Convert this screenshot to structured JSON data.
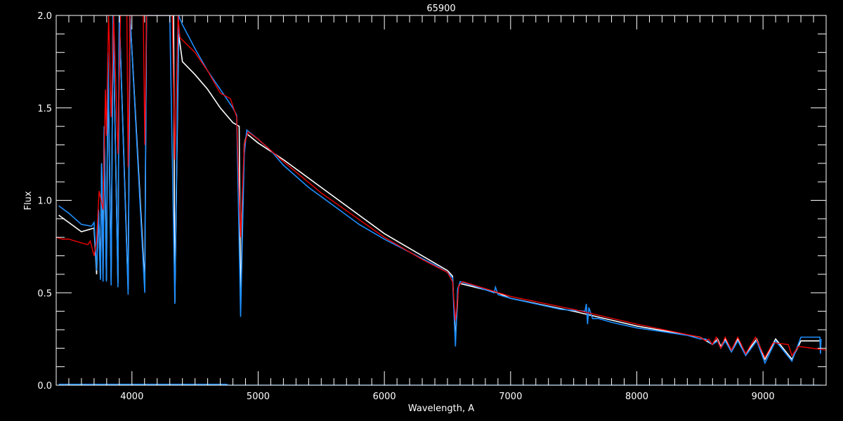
{
  "chart_data": {
    "type": "line",
    "title": "65900",
    "xlabel": "Wavelength, A",
    "ylabel": "Flux",
    "xlim": [
      3400,
      9500
    ],
    "ylim": [
      0.0,
      2.0
    ],
    "x_ticks": [
      4000,
      5000,
      6000,
      7000,
      8000,
      9000
    ],
    "y_ticks": [
      "0.0",
      "0.5",
      "1.0",
      "1.5",
      "2.0"
    ],
    "x_minor_step": 100,
    "y_minor_step": 0.1,
    "grid": false,
    "background": "#000000",
    "axis_color": "#ffffff",
    "series": [
      {
        "color": "#ffffff",
        "points": [
          [
            3420,
            0.92
          ],
          [
            3500,
            0.88
          ],
          [
            3600,
            0.83
          ],
          [
            3700,
            0.85
          ],
          [
            3720,
            0.6
          ],
          [
            3735,
            0.95
          ],
          [
            3750,
            0.58
          ],
          [
            3760,
            1.2
          ],
          [
            3771,
            0.6
          ],
          [
            3780,
            1.4
          ],
          [
            3798,
            0.57
          ],
          [
            3810,
            1.75
          ],
          [
            3835,
            0.57
          ],
          [
            3850,
            2.0
          ],
          [
            3889,
            0.55
          ],
          [
            3900,
            2.0
          ],
          [
            3970,
            0.52
          ],
          [
            3985,
            2.0
          ],
          [
            4102,
            0.55
          ],
          [
            4115,
            2.0
          ],
          [
            4330,
            2.0
          ],
          [
            4340,
            0.45
          ],
          [
            4370,
            1.9
          ],
          [
            4400,
            1.75
          ],
          [
            4500,
            1.68
          ],
          [
            4600,
            1.6
          ],
          [
            4700,
            1.5
          ],
          [
            4800,
            1.42
          ],
          [
            4850,
            1.4
          ],
          [
            4861,
            0.45
          ],
          [
            4890,
            1.3
          ],
          [
            4910,
            1.36
          ],
          [
            5000,
            1.31
          ],
          [
            5200,
            1.22
          ],
          [
            5500,
            1.07
          ],
          [
            5800,
            0.92
          ],
          [
            6000,
            0.82
          ],
          [
            6300,
            0.7
          ],
          [
            6500,
            0.62
          ],
          [
            6540,
            0.59
          ],
          [
            6563,
            0.25
          ],
          [
            6585,
            0.53
          ],
          [
            6600,
            0.55
          ],
          [
            6900,
            0.5
          ],
          [
            7000,
            0.47
          ],
          [
            7500,
            0.4
          ],
          [
            8000,
            0.32
          ],
          [
            8500,
            0.26
          ],
          [
            8600,
            0.22
          ],
          [
            8640,
            0.25
          ],
          [
            8665,
            0.21
          ],
          [
            8700,
            0.25
          ],
          [
            8750,
            0.19
          ],
          [
            8800,
            0.25
          ],
          [
            8863,
            0.17
          ],
          [
            8950,
            0.25
          ],
          [
            9015,
            0.14
          ],
          [
            9100,
            0.25
          ],
          [
            9229,
            0.14
          ],
          [
            9300,
            0.24
          ],
          [
            9450,
            0.24
          ]
        ]
      },
      {
        "color": "#1e8fff",
        "points": [
          [
            3420,
            0.97
          ],
          [
            3500,
            0.93
          ],
          [
            3600,
            0.87
          ],
          [
            3680,
            0.86
          ],
          [
            3700,
            0.88
          ],
          [
            3720,
            0.62
          ],
          [
            3735,
            0.95
          ],
          [
            3750,
            0.57
          ],
          [
            3760,
            1.2
          ],
          [
            3771,
            0.56
          ],
          [
            3780,
            1.4
          ],
          [
            3798,
            0.56
          ],
          [
            3810,
            1.8
          ],
          [
            3835,
            0.54
          ],
          [
            3850,
            2.0
          ],
          [
            3889,
            0.53
          ],
          [
            3900,
            2.0
          ],
          [
            3970,
            0.49
          ],
          [
            3985,
            2.0
          ],
          [
            4102,
            0.5
          ],
          [
            4115,
            2.0
          ],
          [
            4300,
            2.0
          ],
          [
            4340,
            0.44
          ],
          [
            4370,
            2.0
          ],
          [
            4400,
            1.95
          ],
          [
            4500,
            1.82
          ],
          [
            4600,
            1.7
          ],
          [
            4700,
            1.6
          ],
          [
            4800,
            1.5
          ],
          [
            4830,
            1.46
          ],
          [
            4861,
            0.37
          ],
          [
            4890,
            1.25
          ],
          [
            4910,
            1.38
          ],
          [
            5000,
            1.33
          ],
          [
            5100,
            1.27
          ],
          [
            5200,
            1.19
          ],
          [
            5400,
            1.07
          ],
          [
            5600,
            0.97
          ],
          [
            5800,
            0.87
          ],
          [
            6000,
            0.79
          ],
          [
            6200,
            0.72
          ],
          [
            6400,
            0.65
          ],
          [
            6500,
            0.61
          ],
          [
            6540,
            0.58
          ],
          [
            6563,
            0.21
          ],
          [
            6580,
            0.52
          ],
          [
            6600,
            0.56
          ],
          [
            6700,
            0.54
          ],
          [
            6870,
            0.5
          ],
          [
            6880,
            0.53
          ],
          [
            6900,
            0.49
          ],
          [
            7000,
            0.47
          ],
          [
            7200,
            0.44
          ],
          [
            7400,
            0.41
          ],
          [
            7590,
            0.4
          ],
          [
            7600,
            0.44
          ],
          [
            7610,
            0.33
          ],
          [
            7620,
            0.42
          ],
          [
            7650,
            0.36
          ],
          [
            7700,
            0.36
          ],
          [
            7800,
            0.34
          ],
          [
            8000,
            0.31
          ],
          [
            8200,
            0.29
          ],
          [
            8400,
            0.27
          ],
          [
            8500,
            0.25
          ],
          [
            8545,
            0.25
          ],
          [
            8600,
            0.22
          ],
          [
            8640,
            0.24
          ],
          [
            8665,
            0.2
          ],
          [
            8700,
            0.24
          ],
          [
            8750,
            0.18
          ],
          [
            8800,
            0.24
          ],
          [
            8863,
            0.16
          ],
          [
            8950,
            0.24
          ],
          [
            9015,
            0.12
          ],
          [
            9100,
            0.24
          ],
          [
            9229,
            0.13
          ],
          [
            9300,
            0.26
          ],
          [
            9450,
            0.26
          ],
          [
            9455,
            0.17
          ],
          [
            9460,
            0.25
          ]
        ]
      },
      {
        "color": "#ff0000",
        "points": [
          [
            3400,
            0.8
          ],
          [
            3450,
            0.79
          ],
          [
            3500,
            0.79
          ],
          [
            3550,
            0.78
          ],
          [
            3600,
            0.77
          ],
          [
            3650,
            0.76
          ],
          [
            3670,
            0.78
          ],
          [
            3700,
            0.7
          ],
          [
            3720,
            0.78
          ],
          [
            3740,
            1.05
          ],
          [
            3771,
            0.95
          ],
          [
            3790,
            1.6
          ],
          [
            3798,
            1.35
          ],
          [
            3815,
            2.0
          ],
          [
            3835,
            1.45
          ],
          [
            3855,
            2.0
          ],
          [
            3889,
            1.25
          ],
          [
            3910,
            2.0
          ],
          [
            3960,
            2.0
          ],
          [
            3970,
            1.18
          ],
          [
            3985,
            2.0
          ],
          [
            4090,
            2.0
          ],
          [
            4102,
            1.3
          ],
          [
            4115,
            2.0
          ],
          [
            4320,
            2.0
          ],
          [
            4340,
            1.22
          ],
          [
            4365,
            2.0
          ],
          [
            4380,
            1.88
          ],
          [
            4500,
            1.8
          ],
          [
            4600,
            1.7
          ],
          [
            4700,
            1.58
          ],
          [
            4780,
            1.55
          ],
          [
            4830,
            1.45
          ],
          [
            4861,
            0.8
          ],
          [
            4890,
            1.3
          ],
          [
            4920,
            1.37
          ],
          [
            5000,
            1.33
          ],
          [
            5200,
            1.21
          ],
          [
            5500,
            1.04
          ],
          [
            6000,
            0.8
          ],
          [
            6300,
            0.68
          ],
          [
            6500,
            0.61
          ],
          [
            6540,
            0.56
          ],
          [
            6563,
            0.35
          ],
          [
            6590,
            0.54
          ],
          [
            6620,
            0.56
          ],
          [
            7000,
            0.48
          ],
          [
            7500,
            0.41
          ],
          [
            8000,
            0.33
          ],
          [
            8500,
            0.26
          ],
          [
            8545,
            0.24
          ],
          [
            8570,
            0.25
          ],
          [
            8598,
            0.22
          ],
          [
            8630,
            0.26
          ],
          [
            8665,
            0.2
          ],
          [
            8700,
            0.26
          ],
          [
            8750,
            0.19
          ],
          [
            8800,
            0.26
          ],
          [
            8863,
            0.17
          ],
          [
            8940,
            0.26
          ],
          [
            9015,
            0.15
          ],
          [
            9080,
            0.23
          ],
          [
            9200,
            0.22
          ],
          [
            9229,
            0.16
          ],
          [
            9280,
            0.21
          ],
          [
            9500,
            0.19
          ]
        ]
      },
      {
        "color": "#1e8fff",
        "points": [
          [
            3420,
            0.005
          ],
          [
            4750,
            0.005
          ],
          [
            4760,
            0.0
          ],
          [
            9460,
            0.0
          ]
        ]
      }
    ]
  }
}
